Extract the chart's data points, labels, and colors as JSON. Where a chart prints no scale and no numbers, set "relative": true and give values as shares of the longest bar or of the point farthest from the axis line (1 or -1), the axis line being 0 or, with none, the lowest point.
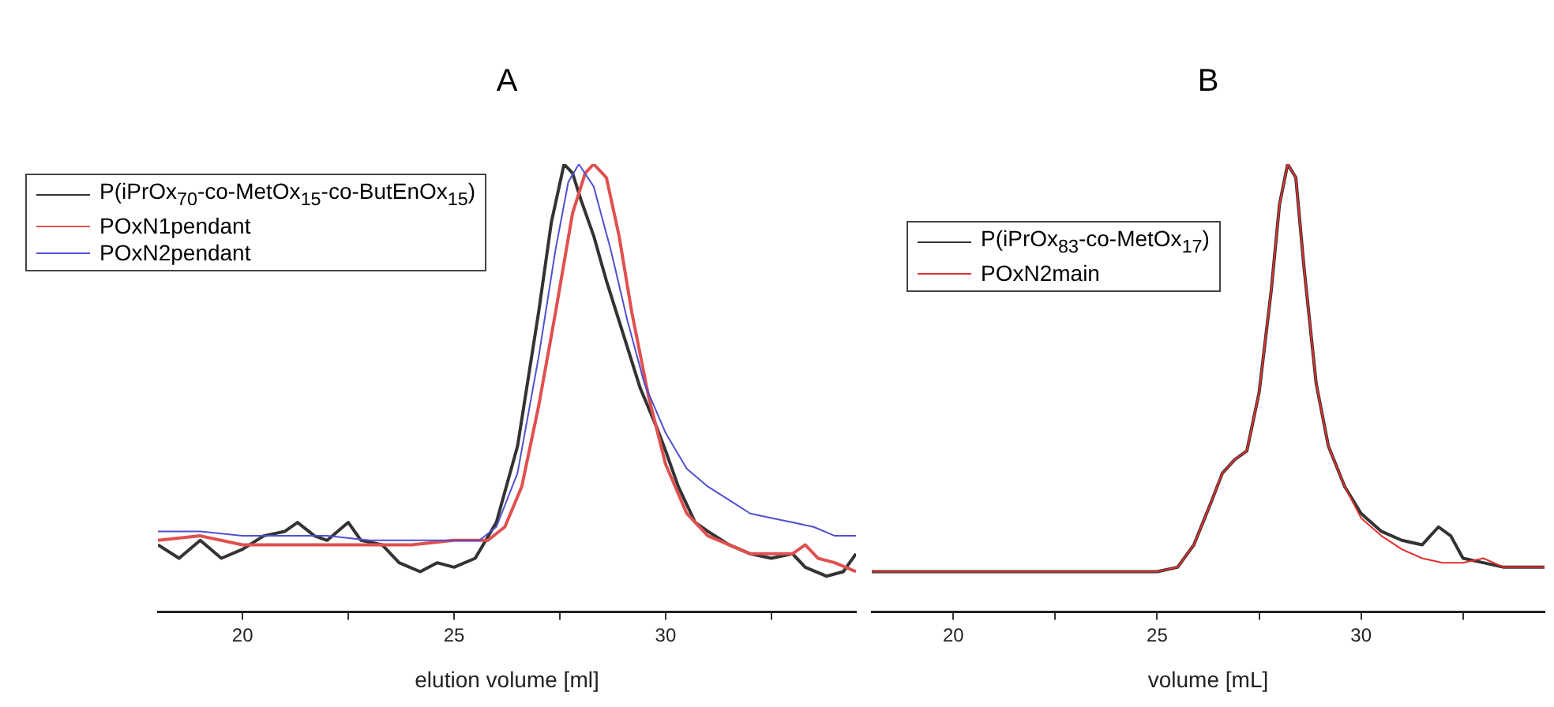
{
  "chart_data": [
    {
      "type": "line",
      "title": "A",
      "xlabel": "elution volume [ml]",
      "relative": true,
      "xlim": [
        18,
        34.5
      ],
      "xticks": [
        20,
        {
          "value": 22.5,
          "label": null
        },
        25,
        {
          "value": 27.5,
          "label": null
        },
        30,
        {
          "value": 32.5,
          "label": null
        }
      ],
      "legend": "top left",
      "marker": "none",
      "series": [
        {
          "name": "P(iPrOx$_{70}$-co-MetOx$_{15}$-co-ButEnOx$_{15}$)",
          "color": "#333333",
          "x": [
            18,
            18.5,
            19,
            19.5,
            20,
            20.5,
            21,
            21.3,
            21.7,
            22,
            22.5,
            22.8,
            23.3,
            23.7,
            24.2,
            24.6,
            25,
            25.5,
            26,
            26.5,
            27,
            27.3,
            27.6,
            27.8,
            28,
            28.3,
            28.6,
            29,
            29.4,
            29.8,
            30,
            30.3,
            30.7,
            31,
            31.5,
            32,
            32.5,
            33,
            33.3,
            33.8,
            34.2,
            34.5
          ],
          "values": [
            0.15,
            0.12,
            0.16,
            0.12,
            0.14,
            0.17,
            0.18,
            0.2,
            0.17,
            0.16,
            0.2,
            0.16,
            0.15,
            0.11,
            0.09,
            0.11,
            0.1,
            0.12,
            0.2,
            0.37,
            0.67,
            0.87,
            1.0,
            0.98,
            0.92,
            0.84,
            0.74,
            0.62,
            0.5,
            0.41,
            0.36,
            0.28,
            0.2,
            0.18,
            0.15,
            0.13,
            0.12,
            0.13,
            0.1,
            0.08,
            0.09,
            0.13
          ]
        },
        {
          "name": "POxN1pendant",
          "color": "#e05050",
          "x": [
            18,
            19,
            20,
            21,
            22,
            23,
            24,
            25,
            25.8,
            26.2,
            26.6,
            27,
            27.4,
            27.8,
            28.1,
            28.3,
            28.6,
            28.9,
            29.2,
            29.6,
            30,
            30.5,
            31,
            31.5,
            32,
            32.5,
            33,
            33.3,
            33.6,
            34,
            34.5
          ],
          "values": [
            0.16,
            0.17,
            0.15,
            0.15,
            0.15,
            0.15,
            0.15,
            0.16,
            0.16,
            0.19,
            0.28,
            0.46,
            0.67,
            0.89,
            0.98,
            1.0,
            0.97,
            0.84,
            0.67,
            0.48,
            0.33,
            0.22,
            0.17,
            0.15,
            0.13,
            0.13,
            0.13,
            0.15,
            0.12,
            0.11,
            0.09
          ]
        },
        {
          "name": "POxN2pendant",
          "color": "#5050d0",
          "x": [
            18,
            19,
            20,
            21,
            22,
            23,
            24,
            25,
            25.6,
            26,
            26.5,
            27,
            27.4,
            27.7,
            27.95,
            28.3,
            28.7,
            29.1,
            29.5,
            30,
            30.5,
            31,
            31.5,
            32,
            32.5,
            33,
            33.5,
            34,
            34.5
          ],
          "values": [
            0.18,
            0.18,
            0.17,
            0.17,
            0.17,
            0.16,
            0.16,
            0.16,
            0.16,
            0.19,
            0.31,
            0.57,
            0.81,
            0.96,
            1.0,
            0.95,
            0.81,
            0.65,
            0.51,
            0.4,
            0.32,
            0.28,
            0.25,
            0.22,
            0.21,
            0.2,
            0.19,
            0.17,
            0.17
          ]
        }
      ]
    },
    {
      "type": "line",
      "title": "B",
      "xlabel": "volume [mL]",
      "relative": true,
      "xlim": [
        18,
        34.5
      ],
      "xticks": [
        20,
        {
          "value": 22.5,
          "label": null
        },
        25,
        {
          "value": 27.5,
          "label": null
        },
        30,
        {
          "value": 32.5,
          "label": null
        }
      ],
      "legend": "top left",
      "marker": "none",
      "series": [
        {
          "name": "P(iPrOx$_{83}$-co-MetOx$_{17}$)",
          "color": "#333333",
          "x": [
            18,
            20,
            22,
            24,
            25,
            25.5,
            25.9,
            26.3,
            26.6,
            26.9,
            27.2,
            27.5,
            27.8,
            28.0,
            28.2,
            28.4,
            28.6,
            28.9,
            29.2,
            29.6,
            30,
            30.5,
            31,
            31.5,
            31.9,
            32.2,
            32.5,
            33,
            33.5,
            34,
            34.5
          ],
          "values": [
            0.09,
            0.09,
            0.09,
            0.09,
            0.09,
            0.1,
            0.15,
            0.24,
            0.31,
            0.34,
            0.36,
            0.49,
            0.72,
            0.91,
            1.0,
            0.97,
            0.77,
            0.51,
            0.37,
            0.28,
            0.22,
            0.18,
            0.16,
            0.15,
            0.19,
            0.17,
            0.12,
            0.11,
            0.1,
            0.1,
            0.1
          ]
        },
        {
          "name": "POxN2main",
          "color": "#e03030",
          "x": [
            18,
            20,
            22,
            24,
            25,
            25.5,
            25.9,
            26.3,
            26.6,
            26.9,
            27.2,
            27.5,
            27.8,
            28.0,
            28.2,
            28.4,
            28.6,
            28.9,
            29.2,
            29.6,
            30,
            30.5,
            31,
            31.5,
            32,
            32.5,
            33,
            33.5,
            34,
            34.5
          ],
          "values": [
            0.09,
            0.09,
            0.09,
            0.09,
            0.09,
            0.1,
            0.15,
            0.24,
            0.31,
            0.34,
            0.36,
            0.49,
            0.72,
            0.91,
            1.0,
            0.97,
            0.77,
            0.51,
            0.37,
            0.28,
            0.21,
            0.17,
            0.14,
            0.12,
            0.11,
            0.11,
            0.12,
            0.1,
            0.1,
            0.1
          ]
        }
      ]
    }
  ]
}
